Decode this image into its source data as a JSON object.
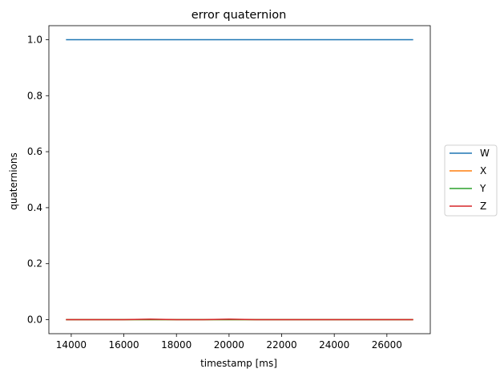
{
  "chart_data": {
    "type": "line",
    "title": "error quaternion",
    "xlabel": "timestamp [ms]",
    "ylabel": "quaternions",
    "xlim": [
      13150,
      27650
    ],
    "ylim": [
      -0.05,
      1.05
    ],
    "xticks": [
      14000,
      16000,
      18000,
      20000,
      22000,
      24000,
      26000
    ],
    "yticks": [
      0.0,
      0.2,
      0.4,
      0.6,
      0.8,
      1.0
    ],
    "ytick_labels": [
      "0.0",
      "0.2",
      "0.4",
      "0.6",
      "0.8",
      "1.0"
    ],
    "grid": false,
    "legend_position": "outside-right",
    "x": [
      13800,
      15000,
      16000,
      17000,
      18000,
      19000,
      20000,
      21000,
      22000,
      23000,
      24000,
      25000,
      26000,
      27000
    ],
    "series": [
      {
        "name": "W",
        "color": "#1f77b4",
        "values": [
          1.0,
          1.0,
          1.0,
          1.0,
          1.0,
          1.0,
          1.0,
          1.0,
          1.0,
          1.0,
          1.0,
          1.0,
          1.0,
          1.0
        ]
      },
      {
        "name": "X",
        "color": "#ff7f0e",
        "values": [
          0.0,
          0.0,
          0.0,
          0.0,
          0.0,
          0.0,
          0.0,
          0.0,
          0.0,
          0.0,
          0.0,
          0.0,
          0.0,
          0.0
        ]
      },
      {
        "name": "Y",
        "color": "#2ca02c",
        "values": [
          0.0,
          0.0,
          0.0,
          0.0,
          0.0,
          0.0,
          0.0,
          0.0,
          0.0,
          0.0,
          0.0,
          0.0,
          0.0,
          0.0
        ]
      },
      {
        "name": "Z",
        "color": "#d62728",
        "values": [
          0.0,
          0.0,
          0.0,
          0.002,
          0.0,
          0.0,
          0.002,
          0.0,
          0.0,
          0.0,
          0.0,
          0.0,
          0.0,
          0.0
        ]
      }
    ]
  }
}
